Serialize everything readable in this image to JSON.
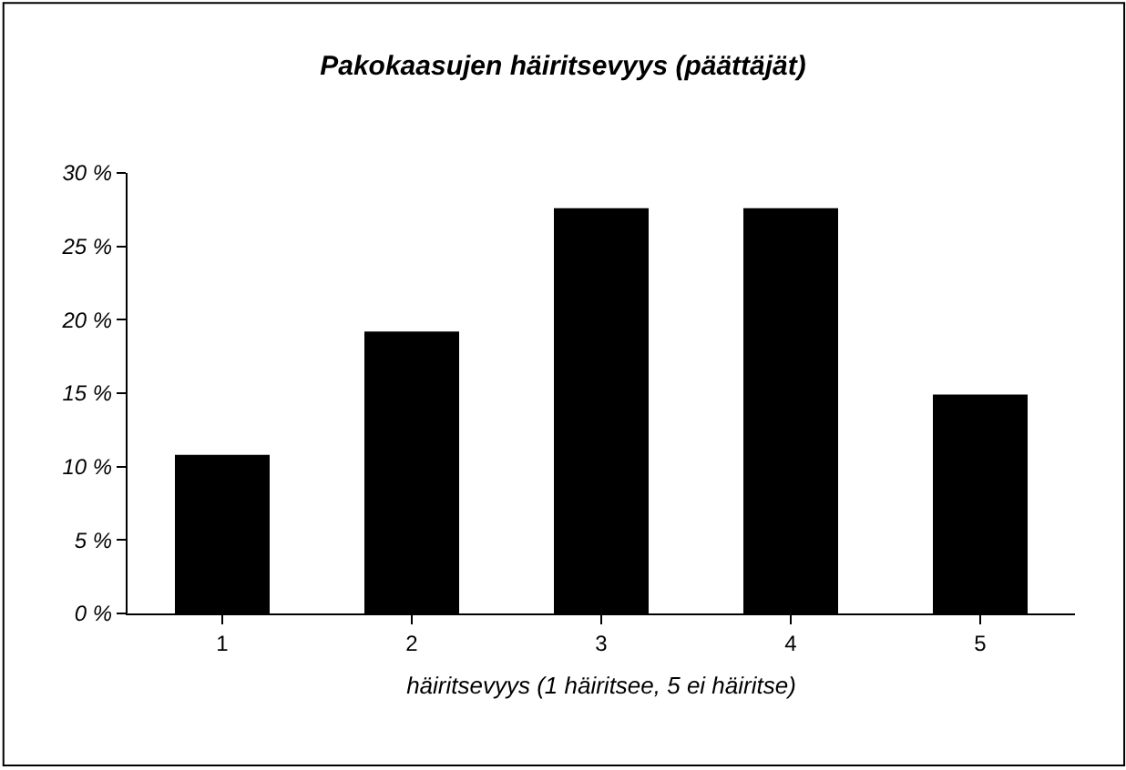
{
  "chart_data": {
    "type": "bar",
    "title": "Pakokaasujen häiritsevyys (päättäjät)",
    "xlabel": "häiritsevyys (1 häiritsee, 5 ei häiritse)",
    "categories": [
      "1",
      "2",
      "3",
      "4",
      "5"
    ],
    "values": [
      10.8,
      19.2,
      27.6,
      27.6,
      14.9
    ],
    "color": "#000000",
    "ylim": [
      0,
      30
    ],
    "yticks": [
      {
        "value": 0,
        "label": "0 %"
      },
      {
        "value": 5,
        "label": "5 %"
      },
      {
        "value": 10,
        "label": "10 %"
      },
      {
        "value": 15,
        "label": "15 %"
      },
      {
        "value": 20,
        "label": "20 %"
      },
      {
        "value": 25,
        "label": "25 %"
      },
      {
        "value": 30,
        "label": "30 %"
      }
    ],
    "grid": false,
    "legend": false
  }
}
